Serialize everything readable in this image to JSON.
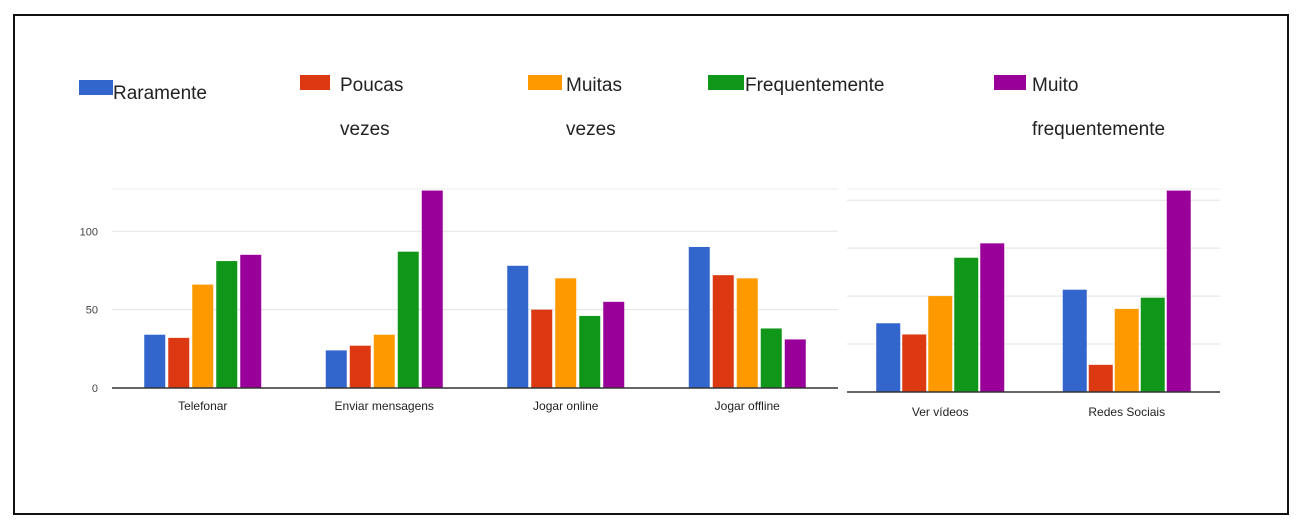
{
  "legend": [
    {
      "label": "Raramente",
      "color": "#3366cc"
    },
    {
      "label": "Poucas\nvezes",
      "color": "#dc3912"
    },
    {
      "label": "Muitas\nvezes",
      "color": "#ff9900"
    },
    {
      "label": "Frequentemente",
      "color": "#109618"
    },
    {
      "label": "Muito\nfrequentemente",
      "color": "#990099"
    }
  ],
  "chart_data": [
    {
      "type": "bar",
      "categories": [
        "Telefonar",
        "Enviar mensagens",
        "Jogar online",
        "Jogar offline"
      ],
      "series": [
        {
          "name": "Raramente",
          "values": [
            34,
            24,
            78,
            90
          ]
        },
        {
          "name": "Poucas vezes",
          "values": [
            32,
            27,
            50,
            72
          ]
        },
        {
          "name": "Muitas vezes",
          "values": [
            66,
            34,
            70,
            70
          ]
        },
        {
          "name": "Frequentemente",
          "values": [
            81,
            87,
            46,
            38
          ]
        },
        {
          "name": "Muito frequentemente",
          "values": [
            85,
            126,
            55,
            31
          ]
        }
      ],
      "yticks": [
        "0",
        "50",
        "100"
      ],
      "ylim": [
        0,
        127
      ],
      "grid": true
    },
    {
      "type": "bar",
      "categories": [
        "Ver vídeos",
        "Redes Sociais"
      ],
      "series": [
        {
          "name": "Raramente",
          "values": [
            43,
            64
          ]
        },
        {
          "name": "Poucas vezes",
          "values": [
            36,
            17
          ]
        },
        {
          "name": "Muitas vezes",
          "values": [
            60,
            52
          ]
        },
        {
          "name": "Frequentemente",
          "values": [
            84,
            59
          ]
        },
        {
          "name": "Muito frequentemente",
          "values": [
            93,
            126
          ]
        }
      ],
      "yticks": [],
      "ylim": [
        0,
        127
      ],
      "grid": true
    }
  ]
}
